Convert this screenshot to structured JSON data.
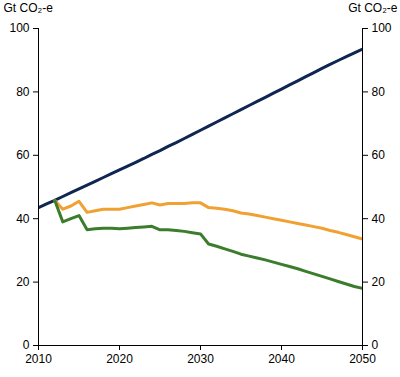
{
  "chart_data": {
    "type": "line",
    "ylabel": "Gt CO₂-e",
    "y2label": "Gt CO₂-e",
    "x": [
      2010,
      2011,
      2012,
      2013,
      2014,
      2015,
      2016,
      2017,
      2018,
      2019,
      2020,
      2021,
      2022,
      2023,
      2024,
      2025,
      2026,
      2027,
      2028,
      2029,
      2030,
      2031,
      2032,
      2033,
      2034,
      2035,
      2036,
      2037,
      2038,
      2039,
      2040,
      2041,
      2042,
      2043,
      2044,
      2045,
      2046,
      2047,
      2048,
      2049,
      2050
    ],
    "series": [
      {
        "color": "#0f2552",
        "values": [
          43.5,
          44.7,
          45.8,
          47,
          48.2,
          49.4,
          50.6,
          51.8,
          53,
          54.2,
          55.4,
          56.6,
          57.8,
          59,
          60.3,
          61.5,
          62.8,
          64,
          65.3,
          66.6,
          67.9,
          69.2,
          70.5,
          71.8,
          73.1,
          74.4,
          75.7,
          77,
          78.3,
          79.6,
          80.9,
          82.2,
          83.5,
          84.8,
          86.1,
          87.4,
          88.7,
          89.9,
          91.1,
          92.3,
          93.5
        ]
      },
      {
        "color": "#f0a132",
        "values": [
          null,
          null,
          45.8,
          43,
          44,
          45.5,
          42,
          42.5,
          43,
          43,
          43,
          43.5,
          44,
          44.5,
          45,
          44.3,
          44.8,
          44.8,
          44.8,
          45,
          45,
          43.5,
          43.3,
          43,
          42.5,
          41.8,
          41.5,
          41,
          40.5,
          40,
          39.5,
          39,
          38.5,
          38,
          37.5,
          37,
          36.3,
          35.7,
          35,
          34.3,
          33.6
        ]
      },
      {
        "color": "#3b7d2c",
        "values": [
          null,
          null,
          45.8,
          39,
          40,
          41,
          36.5,
          36.8,
          37,
          37,
          36.8,
          37,
          37.2,
          37.4,
          37.6,
          36.5,
          36.5,
          36.3,
          36,
          35.6,
          35.2,
          32,
          31.3,
          30.5,
          29.7,
          28.8,
          28.2,
          27.6,
          27,
          26.3,
          25.6,
          24.9,
          24.2,
          23.4,
          22.6,
          21.8,
          21,
          20.2,
          19.4,
          18.6,
          18
        ]
      }
    ],
    "xlim": [
      2010,
      2050
    ],
    "xticks": [
      2010,
      2020,
      2030,
      2040,
      2050
    ],
    "ylim": [
      0,
      100
    ],
    "yticks": [
      0,
      20,
      40,
      60,
      80,
      100
    ],
    "y2lim": [
      0,
      100
    ],
    "y2ticks": [
      0,
      20,
      40,
      60,
      80,
      100
    ],
    "grid": false
  }
}
